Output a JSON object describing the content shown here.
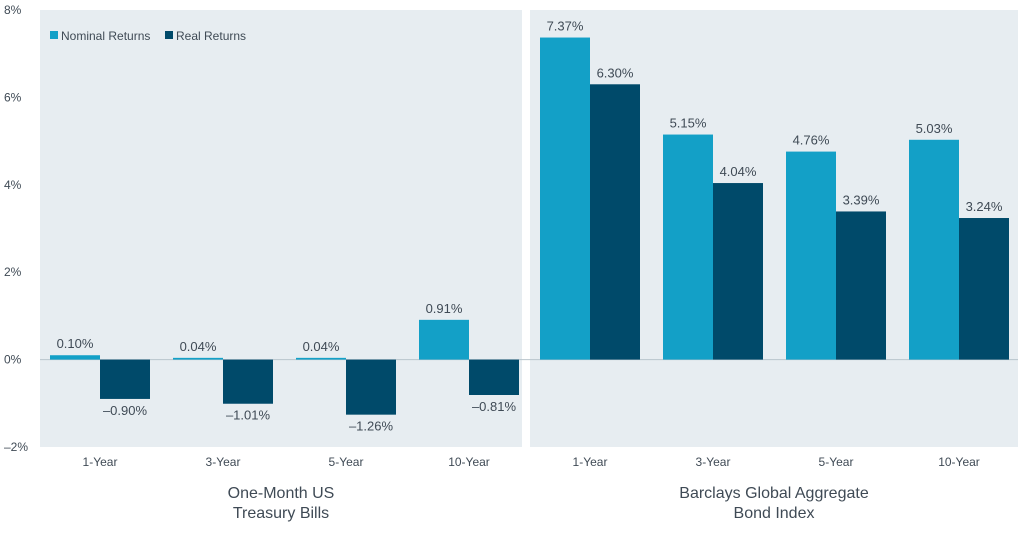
{
  "chart_data": {
    "type": "bar",
    "colors": {
      "panel": "#e7edf1",
      "nominal": "#13a0c7",
      "real": "#004a6a",
      "text": "#3f4a55"
    },
    "series": [
      {
        "name": "Nominal Returns",
        "color": "#13a0c7"
      },
      {
        "name": "Real Returns",
        "color": "#004a6a"
      }
    ],
    "legend_position": "top-left",
    "ylim": [
      -2,
      8
    ],
    "yticks": [
      "8%",
      "6%",
      "4%",
      "2%",
      "0%",
      "–2%"
    ],
    "ytick_values": [
      8,
      6,
      4,
      2,
      0,
      -2
    ],
    "grid": false,
    "groups": [
      {
        "title_lines": [
          "One-Month US",
          "Treasury Bills"
        ],
        "categories": [
          "1-Year",
          "3-Year",
          "5-Year",
          "10-Year"
        ],
        "nominal": [
          0.1,
          0.04,
          0.04,
          0.91
        ],
        "real": [
          -0.9,
          -1.01,
          -1.26,
          -0.81
        ],
        "nominal_labels": [
          "0.10%",
          "0.04%",
          "0.04%",
          "0.91%"
        ],
        "real_labels": [
          "–0.90%",
          "–1.01%",
          "–1.26%",
          "–0.81%"
        ]
      },
      {
        "title_lines": [
          "Barclays Global  Aggregate",
          "Bond Index"
        ],
        "categories": [
          "1-Year",
          "3-Year",
          "5-Year",
          "10-Year"
        ],
        "nominal": [
          7.37,
          5.15,
          4.76,
          5.03
        ],
        "real": [
          6.3,
          4.04,
          3.39,
          3.24
        ],
        "nominal_labels": [
          "7.37%",
          "5.15%",
          "4.76%",
          "5.03%"
        ],
        "real_labels": [
          "6.30%",
          "4.04%",
          "3.39%",
          "3.24%"
        ]
      }
    ]
  }
}
